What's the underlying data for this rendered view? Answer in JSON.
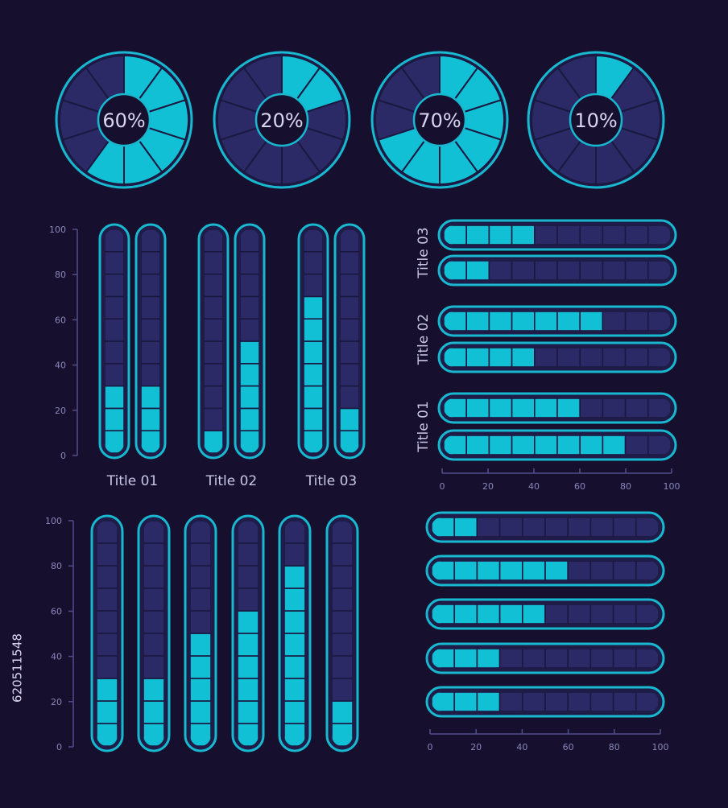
{
  "colors": {
    "background": "#16102e",
    "filled": "#12c0d6",
    "empty": "#2b2a66",
    "outline": "#18b8d0",
    "axis": "#524d8a",
    "tick_label": "#8a87bb",
    "label": "#c8c6e6",
    "donut_text": "#d8d6ee"
  },
  "watermark": "620511548",
  "chart_data": [
    {
      "type": "donut",
      "segments": 10,
      "values": [
        60,
        20,
        70,
        10
      ],
      "labels": [
        "60%",
        "20%",
        "70%",
        "10%"
      ]
    },
    {
      "type": "bar",
      "orientation": "vertical",
      "categories": [
        "Title 01",
        "Title 02",
        "Title 03"
      ],
      "series": [
        {
          "values": [
            30,
            10,
            70
          ]
        },
        {
          "values": [
            30,
            50,
            20
          ]
        }
      ],
      "ylim": [
        0,
        100
      ],
      "yticks": [
        0,
        20,
        40,
        60,
        80,
        100
      ]
    },
    {
      "type": "bar",
      "orientation": "horizontal",
      "categories": [
        "Title 03",
        "Title 02",
        "Title 01"
      ],
      "series": [
        {
          "values": [
            40,
            70,
            60
          ]
        },
        {
          "values": [
            20,
            40,
            80
          ]
        }
      ],
      "xlim": [
        0,
        100
      ],
      "xticks": [
        0,
        20,
        40,
        60,
        80,
        100
      ]
    },
    {
      "type": "bar",
      "orientation": "vertical",
      "values": [
        30,
        30,
        50,
        60,
        80,
        20
      ],
      "ylim": [
        0,
        100
      ],
      "yticks": [
        0,
        20,
        40,
        60,
        80,
        100
      ]
    },
    {
      "type": "bar",
      "orientation": "horizontal",
      "values": [
        20,
        60,
        50,
        30,
        30
      ],
      "xlim": [
        0,
        100
      ],
      "xticks": [
        0,
        20,
        40,
        60,
        80,
        100
      ]
    }
  ]
}
